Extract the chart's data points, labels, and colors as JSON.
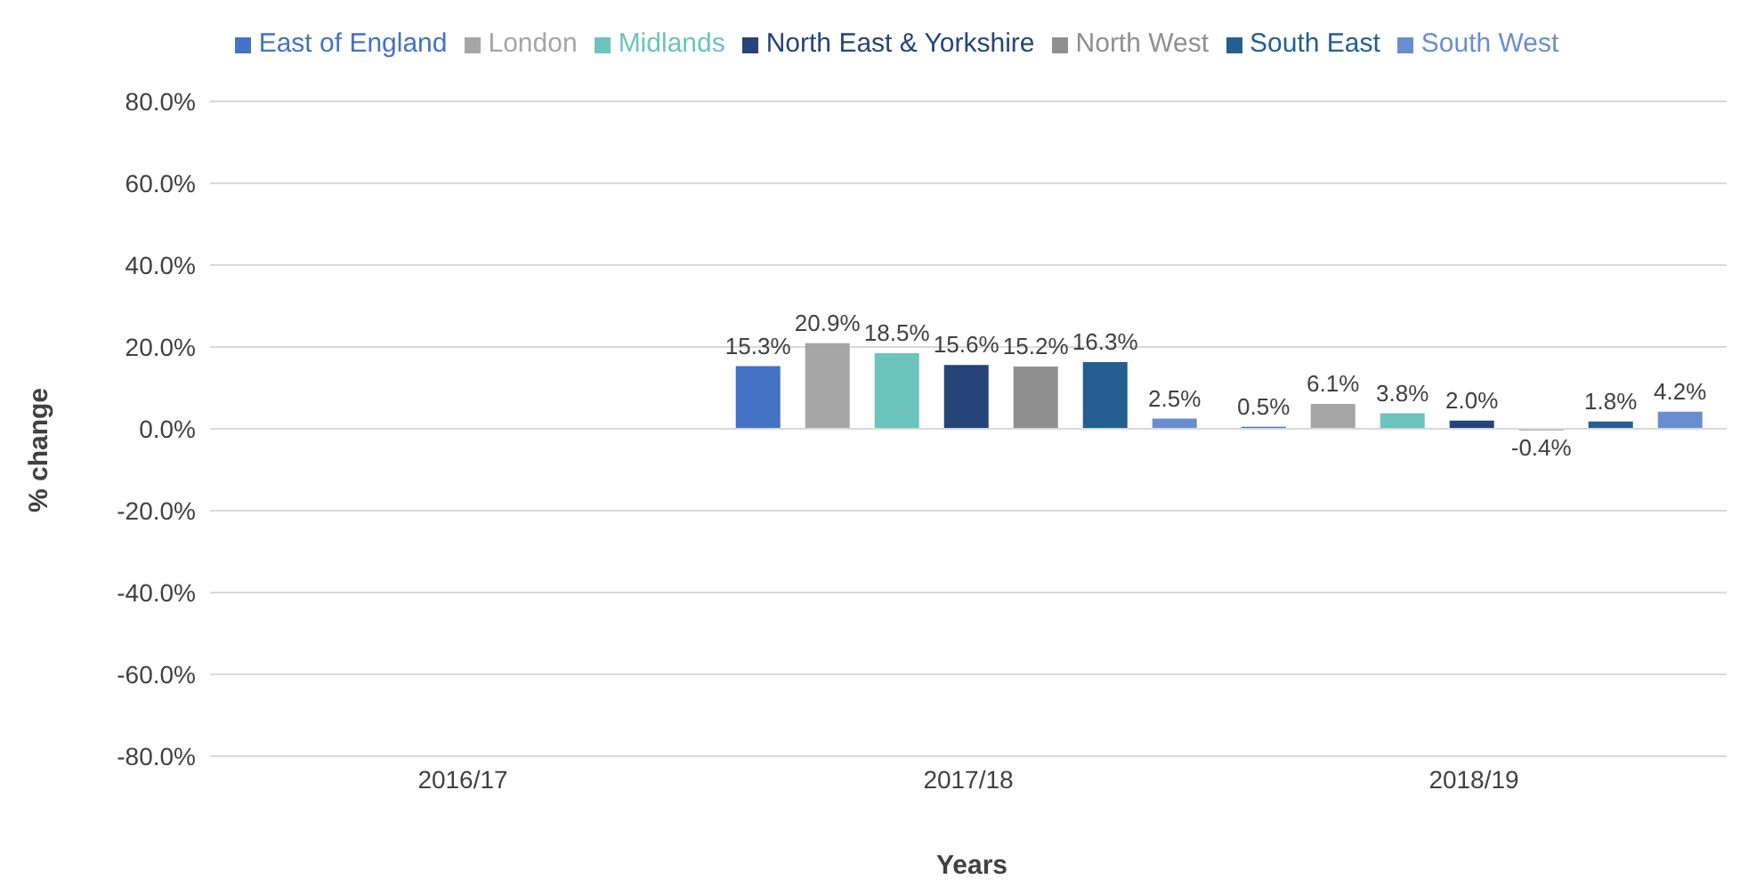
{
  "chart_data": {
    "type": "bar",
    "xlabel": "Years",
    "ylabel": "% change",
    "categories": [
      "2016/17",
      "2017/18",
      "2018/19"
    ],
    "series": [
      {
        "name": "East of England",
        "color": "#4472c4",
        "values": [
          null,
          15.3,
          0.5
        ],
        "value_labels": [
          null,
          "15.3%",
          "0.5%"
        ]
      },
      {
        "name": "London",
        "color": "#a5a5a5",
        "values": [
          null,
          20.9,
          6.1
        ],
        "value_labels": [
          null,
          "20.9%",
          "6.1%"
        ]
      },
      {
        "name": "Midlands",
        "color": "#6cc4bc",
        "values": [
          null,
          18.5,
          3.8
        ],
        "value_labels": [
          null,
          "18.5%",
          "3.8%"
        ]
      },
      {
        "name": "North East & Yorkshire",
        "color": "#264478",
        "values": [
          null,
          15.6,
          2.0
        ],
        "value_labels": [
          null,
          "15.6%",
          "2.0%"
        ]
      },
      {
        "name": "North West",
        "color": "#8f8f8f",
        "values": [
          null,
          15.2,
          -0.4
        ],
        "value_labels": [
          null,
          "15.2%",
          "-0.4%"
        ]
      },
      {
        "name": "South East",
        "color": "#255e91",
        "values": [
          null,
          16.3,
          1.8
        ],
        "value_labels": [
          null,
          "16.3%",
          "1.8%"
        ]
      },
      {
        "name": "South West",
        "color": "#698ed0",
        "values": [
          null,
          2.5,
          4.2
        ],
        "value_labels": [
          null,
          "2.5%",
          "4.2%"
        ]
      }
    ],
    "ylim": [
      -80,
      80
    ],
    "yticks": [
      {
        "value": -80,
        "label": "-80.0%"
      },
      {
        "value": -60,
        "label": "-60.0%"
      },
      {
        "value": -40,
        "label": "-40.0%"
      },
      {
        "value": -20,
        "label": "-20.0%"
      },
      {
        "value": 0,
        "label": "0.0%"
      },
      {
        "value": 20,
        "label": "20.0%"
      },
      {
        "value": 40,
        "label": "40.0%"
      },
      {
        "value": 60,
        "label": "60.0%"
      },
      {
        "value": 80,
        "label": "80.0%"
      }
    ],
    "grid": "y",
    "legend": "top"
  }
}
